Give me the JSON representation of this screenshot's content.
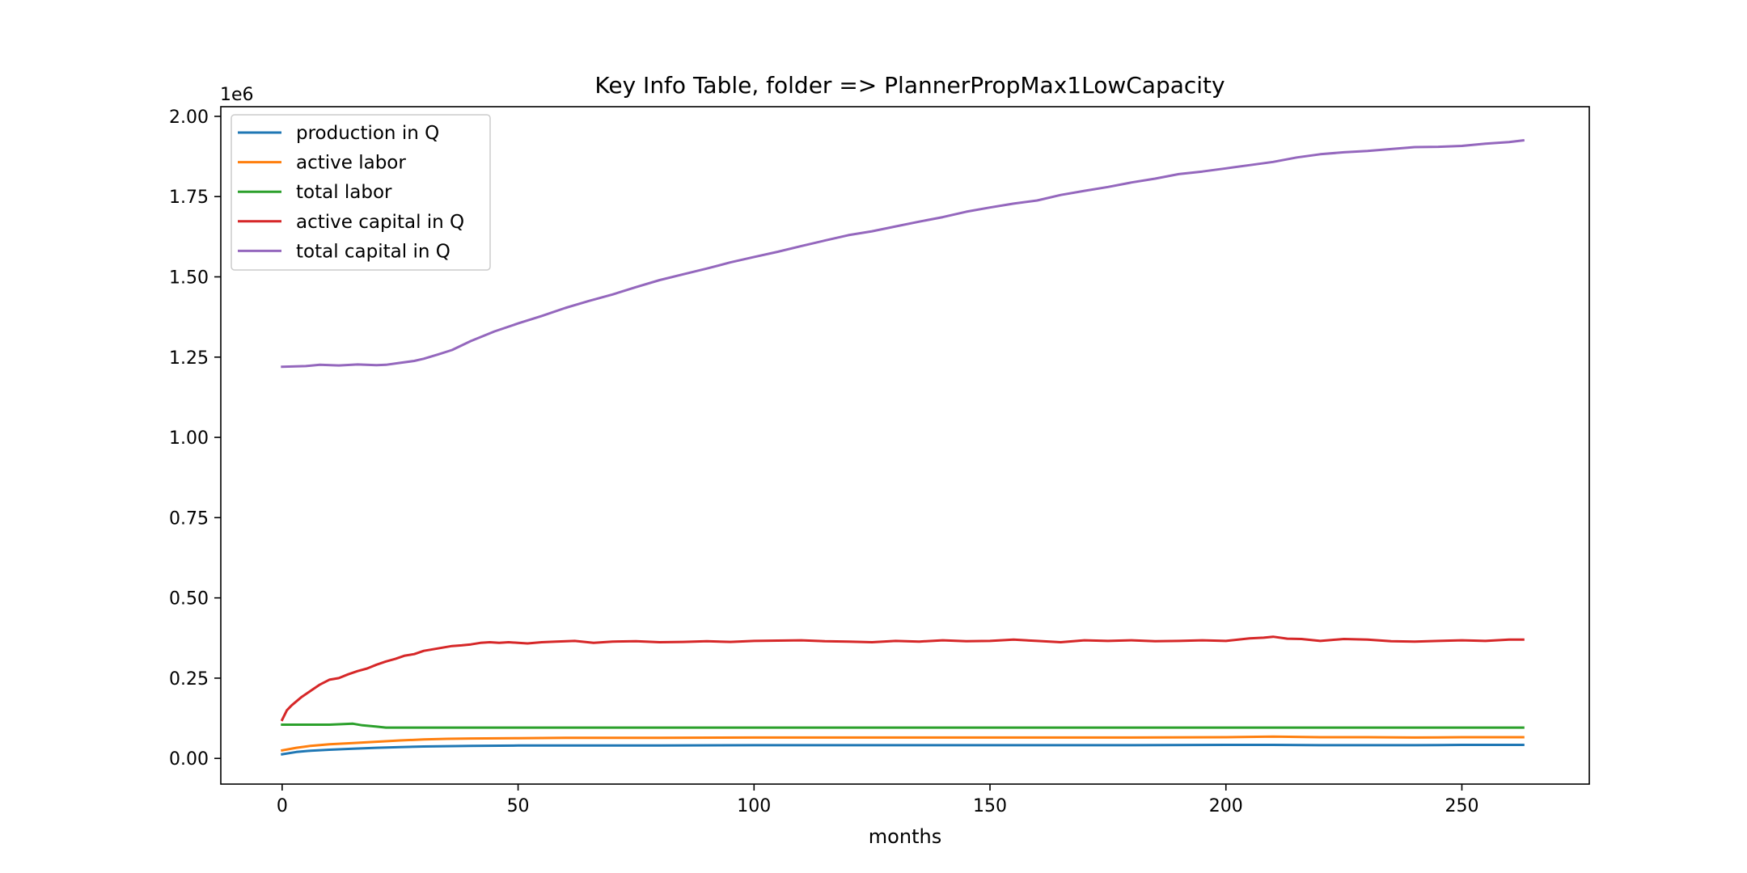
{
  "chart_data": {
    "type": "line",
    "title": "Key Info Table, folder => PlannerPropMax1LowCapacity",
    "xlabel": "months",
    "ylabel": "",
    "y_offset_label": "1e6",
    "xlim": [
      -13,
      277
    ],
    "ylim": [
      -0.08,
      2.03
    ],
    "y_scale_factor": 1000000,
    "x_ticks": [
      0,
      50,
      100,
      150,
      200,
      250
    ],
    "y_ticks": [
      0.0,
      0.25,
      0.5,
      0.75,
      1.0,
      1.25,
      1.5,
      1.75,
      2.0
    ],
    "y_tick_labels": [
      "0.00",
      "0.25",
      "0.50",
      "0.75",
      "1.00",
      "1.25",
      "1.50",
      "1.75",
      "2.00"
    ],
    "grid": false,
    "legend_position": "upper-left",
    "series": [
      {
        "name": "production in Q",
        "color": "#1f77b4",
        "x": [
          0,
          3,
          6,
          10,
          15,
          20,
          25,
          30,
          35,
          40,
          50,
          60,
          80,
          100,
          120,
          140,
          160,
          180,
          200,
          210,
          220,
          230,
          240,
          250,
          263
        ],
        "y": [
          0.013,
          0.02,
          0.024,
          0.027,
          0.03,
          0.033,
          0.035,
          0.037,
          0.038,
          0.039,
          0.04,
          0.04,
          0.04,
          0.041,
          0.041,
          0.041,
          0.041,
          0.041,
          0.042,
          0.042,
          0.041,
          0.041,
          0.041,
          0.042,
          0.042
        ]
      },
      {
        "name": "active labor",
        "color": "#ff7f0e",
        "x": [
          0,
          3,
          6,
          10,
          15,
          20,
          25,
          30,
          35,
          40,
          50,
          60,
          80,
          100,
          120,
          140,
          160,
          180,
          200,
          210,
          220,
          230,
          240,
          250,
          263
        ],
        "y": [
          0.025,
          0.033,
          0.039,
          0.044,
          0.048,
          0.052,
          0.056,
          0.059,
          0.061,
          0.062,
          0.063,
          0.064,
          0.064,
          0.065,
          0.065,
          0.065,
          0.065,
          0.065,
          0.066,
          0.068,
          0.066,
          0.066,
          0.065,
          0.066,
          0.066
        ]
      },
      {
        "name": "total labor",
        "color": "#2ca02c",
        "x": [
          0,
          5,
          10,
          13,
          15,
          17,
          20,
          22,
          30,
          50,
          100,
          150,
          200,
          250,
          263
        ],
        "y": [
          0.105,
          0.105,
          0.105,
          0.107,
          0.108,
          0.103,
          0.099,
          0.096,
          0.096,
          0.096,
          0.096,
          0.096,
          0.096,
          0.096,
          0.096
        ]
      },
      {
        "name": "active capital in Q",
        "color": "#d62728",
        "x": [
          0,
          1,
          2,
          4,
          6,
          8,
          10,
          12,
          14,
          16,
          18,
          20,
          22,
          24,
          26,
          28,
          30,
          32,
          34,
          36,
          38,
          40,
          42,
          44,
          46,
          48,
          50,
          52,
          55,
          58,
          62,
          66,
          70,
          75,
          80,
          85,
          90,
          95,
          100,
          105,
          110,
          115,
          120,
          125,
          130,
          135,
          140,
          145,
          150,
          155,
          160,
          165,
          170,
          175,
          180,
          185,
          190,
          195,
          200,
          205,
          208,
          210,
          213,
          216,
          220,
          225,
          230,
          235,
          240,
          245,
          250,
          255,
          260,
          263
        ],
        "y": [
          0.12,
          0.15,
          0.165,
          0.19,
          0.21,
          0.23,
          0.245,
          0.25,
          0.262,
          0.272,
          0.28,
          0.292,
          0.302,
          0.31,
          0.32,
          0.325,
          0.335,
          0.34,
          0.345,
          0.35,
          0.352,
          0.355,
          0.36,
          0.362,
          0.36,
          0.362,
          0.36,
          0.358,
          0.362,
          0.364,
          0.366,
          0.36,
          0.364,
          0.365,
          0.362,
          0.363,
          0.365,
          0.363,
          0.366,
          0.367,
          0.368,
          0.365,
          0.364,
          0.362,
          0.366,
          0.364,
          0.368,
          0.365,
          0.366,
          0.37,
          0.366,
          0.362,
          0.368,
          0.366,
          0.368,
          0.365,
          0.366,
          0.368,
          0.366,
          0.374,
          0.376,
          0.379,
          0.373,
          0.372,
          0.366,
          0.372,
          0.37,
          0.365,
          0.364,
          0.366,
          0.368,
          0.366,
          0.37,
          0.37
        ]
      },
      {
        "name": "total capital in Q",
        "color": "#9467bd",
        "x": [
          0,
          5,
          8,
          12,
          16,
          20,
          22,
          25,
          28,
          30,
          33,
          36,
          40,
          45,
          50,
          55,
          60,
          65,
          70,
          75,
          80,
          85,
          90,
          95,
          100,
          105,
          110,
          115,
          120,
          125,
          130,
          135,
          140,
          145,
          150,
          155,
          160,
          165,
          170,
          175,
          180,
          185,
          190,
          195,
          200,
          205,
          210,
          215,
          220,
          225,
          230,
          235,
          240,
          245,
          250,
          255,
          260,
          263
        ],
        "y": [
          1.22,
          1.222,
          1.226,
          1.224,
          1.227,
          1.225,
          1.226,
          1.232,
          1.238,
          1.245,
          1.258,
          1.272,
          1.3,
          1.33,
          1.355,
          1.378,
          1.403,
          1.425,
          1.445,
          1.468,
          1.49,
          1.508,
          1.526,
          1.545,
          1.562,
          1.578,
          1.596,
          1.613,
          1.63,
          1.642,
          1.657,
          1.672,
          1.686,
          1.703,
          1.716,
          1.728,
          1.738,
          1.755,
          1.768,
          1.78,
          1.794,
          1.806,
          1.82,
          1.828,
          1.838,
          1.848,
          1.858,
          1.872,
          1.882,
          1.888,
          1.892,
          1.898,
          1.904,
          1.905,
          1.908,
          1.915,
          1.92,
          1.925
        ]
      }
    ]
  }
}
